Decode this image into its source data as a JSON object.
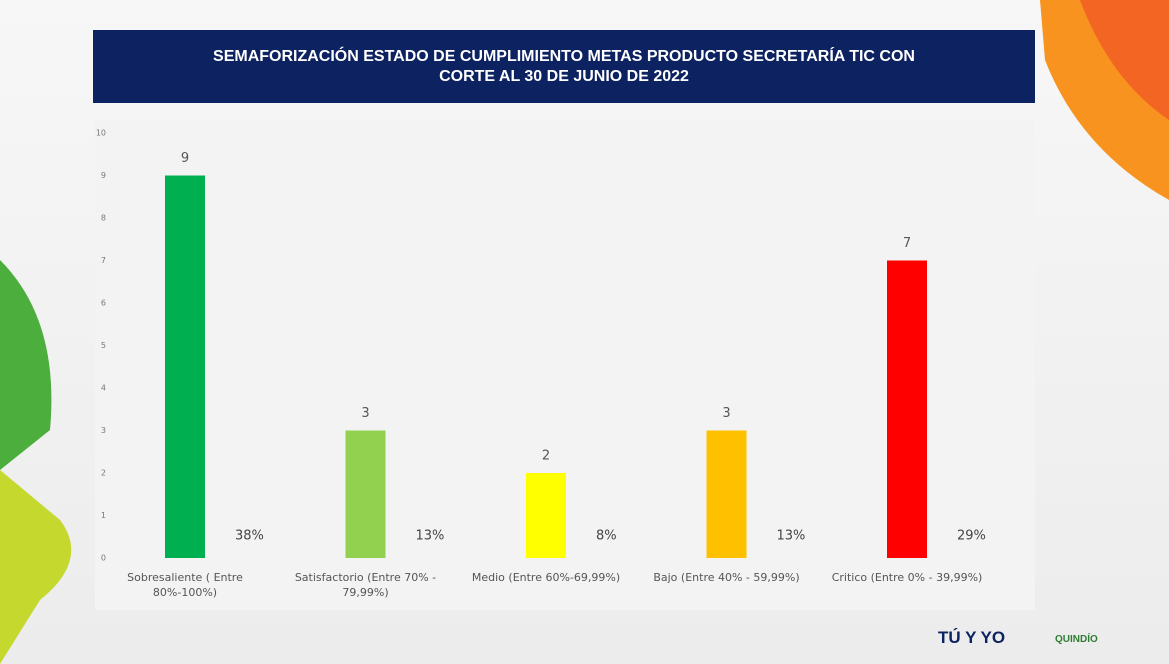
{
  "chart_data": {
    "type": "bar",
    "title": "SEMAFORIZACIÓN  ESTADO DE CUMPLIMIENTO METAS PRODUCTO SECRETARÍA TIC CON CORTE AL 30 DE JUNIO DE 2022",
    "categories": [
      "Sobresaliente  ( Entre 80%-100%)",
      "Satisfactorio (Entre 70% - 79,99%)",
      "Medio (Entre 60%-69,99%)",
      "Bajo (Entre 40% - 59,99%)",
      "Critico (Entre 0% - 39,99%)"
    ],
    "values": [
      9,
      3,
      2,
      3,
      7
    ],
    "percent_labels": [
      "38%",
      "13%",
      "8%",
      "13%",
      "29%"
    ],
    "colors": [
      "#00b050",
      "#92d050",
      "#ffff00",
      "#ffc000",
      "#ff0000"
    ],
    "ylim": [
      0,
      10
    ],
    "yticks": [
      0,
      1,
      2,
      3,
      4,
      5,
      6,
      7,
      8,
      9,
      10
    ],
    "grid": false
  },
  "logos": [
    "TÚ Y YO",
    "QUINDÍO"
  ]
}
